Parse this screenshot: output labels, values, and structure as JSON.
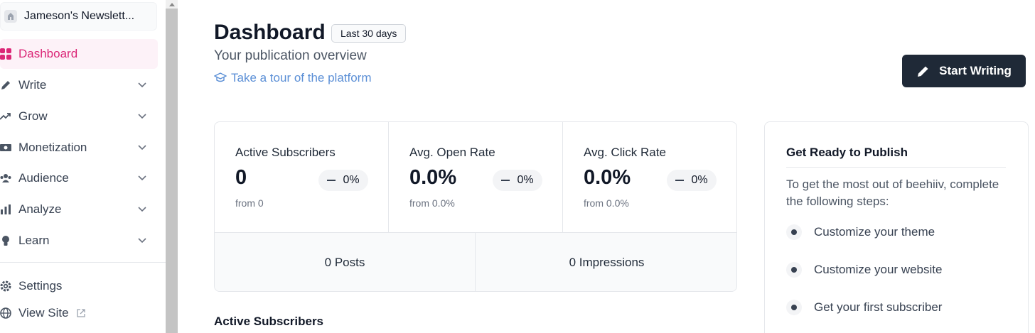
{
  "sidebar": {
    "publication": {
      "name": "Jameson's Newslett..."
    },
    "items": [
      {
        "label": "Dashboard",
        "icon": "grid-icon",
        "active": true
      },
      {
        "label": "Write",
        "icon": "pencil-icon"
      },
      {
        "label": "Grow",
        "icon": "trending-up-icon"
      },
      {
        "label": "Monetization",
        "icon": "banknote-icon"
      },
      {
        "label": "Audience",
        "icon": "users-icon"
      },
      {
        "label": "Analyze",
        "icon": "bar-chart-icon"
      },
      {
        "label": "Learn",
        "icon": "lightbulb-icon"
      }
    ],
    "settings": {
      "label": "Settings",
      "icon": "gear-icon"
    },
    "view_site": {
      "label": "View Site",
      "icon": "globe-icon"
    }
  },
  "header": {
    "title": "Dashboard",
    "range": "Last 30 days",
    "subtitle": "Your publication overview",
    "tour_link": "Take a tour of the platform",
    "start_button": "Start Writing"
  },
  "stats": [
    {
      "label": "Active Subscribers",
      "value": "0",
      "change": "0%",
      "from": "from 0"
    },
    {
      "label": "Avg. Open Rate",
      "value": "0.0%",
      "change": "0%",
      "from": "from 0.0%"
    },
    {
      "label": "Avg. Click Rate",
      "value": "0.0%",
      "change": "0%",
      "from": "from 0.0%"
    }
  ],
  "totals": {
    "posts": "0 Posts",
    "impressions": "0 Impressions"
  },
  "section_title": "Active Subscribers",
  "publish": {
    "title": "Get Ready to Publish",
    "description": "To get the most out of beehiiv, complete the following steps:",
    "steps": [
      "Customize your theme",
      "Customize your website",
      "Get your first subscriber"
    ]
  },
  "colors": {
    "accent": "#db2777",
    "active_bg": "#fdf2f8",
    "primary_button": "#1f2937",
    "link": "#5b8fd6"
  }
}
